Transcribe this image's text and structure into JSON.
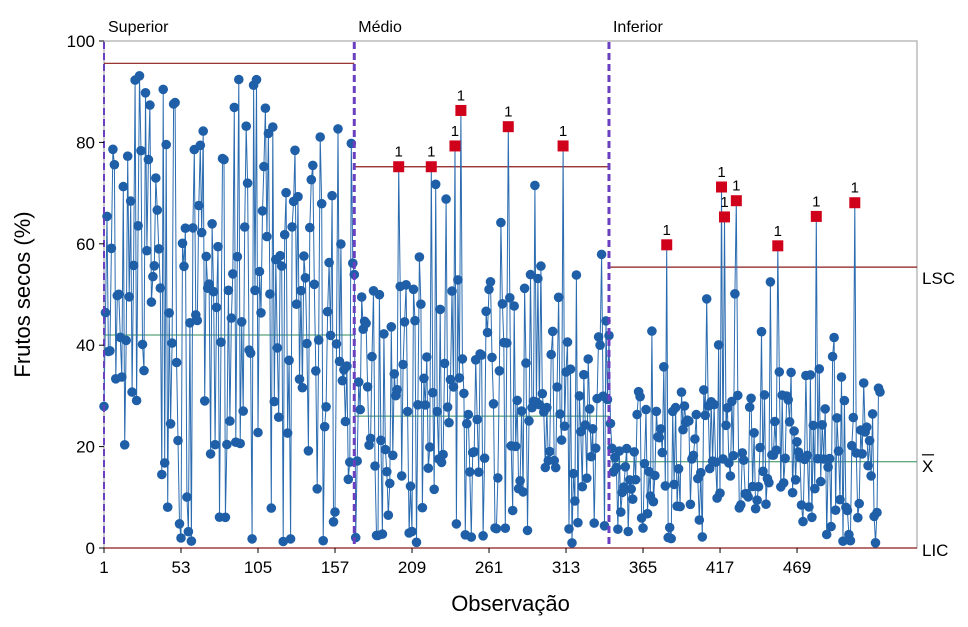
{
  "chart_data": {
    "type": "scatter",
    "xlabel": "Observação",
    "ylabel": "Frutos secos (%)",
    "xlim": [
      1,
      550
    ],
    "ylim": [
      0,
      100
    ],
    "x_ticks": [
      1,
      53,
      105,
      157,
      209,
      261,
      313,
      365,
      417,
      469
    ],
    "y_ticks": [
      0,
      20,
      40,
      60,
      80,
      100
    ],
    "colors": {
      "points": "#1f5fa8",
      "line": "#2b6cb0",
      "flagged": "#d0021b",
      "control_limit": "#8b1a1a",
      "center_line": "#2e8b57",
      "phase_divider": "#6a3fc0",
      "frame": "#999999"
    },
    "phases": [
      {
        "name": "Superior",
        "start": 1,
        "end": 170,
        "ucl": 95.6,
        "mean": 42.0,
        "lcl": 0
      },
      {
        "name": "Médio",
        "start": 170,
        "end": 342,
        "ucl": 75.2,
        "mean": 26.0,
        "lcl": 0
      },
      {
        "name": "Inferior",
        "start": 342,
        "end": 550,
        "ucl": 55.4,
        "mean": 17.0,
        "lcl": 0
      }
    ],
    "limit_labels": {
      "ucl": "LSC",
      "mean": "X",
      "lcl": "LIC"
    },
    "flag_label": "1",
    "flagged_points": [
      {
        "x": 200,
        "y": 75.2
      },
      {
        "x": 222,
        "y": 75.2
      },
      {
        "x": 238,
        "y": 79.3
      },
      {
        "x": 242,
        "y": 86.3
      },
      {
        "x": 274,
        "y": 83.1
      },
      {
        "x": 311,
        "y": 79.3
      },
      {
        "x": 381,
        "y": 59.8
      },
      {
        "x": 418,
        "y": 71.2
      },
      {
        "x": 420,
        "y": 65.3
      },
      {
        "x": 428,
        "y": 68.5
      },
      {
        "x": 456,
        "y": 59.6
      },
      {
        "x": 482,
        "y": 65.4
      },
      {
        "x": 508,
        "y": 68.1
      }
    ],
    "seed": 7,
    "n_observations": 525
  }
}
